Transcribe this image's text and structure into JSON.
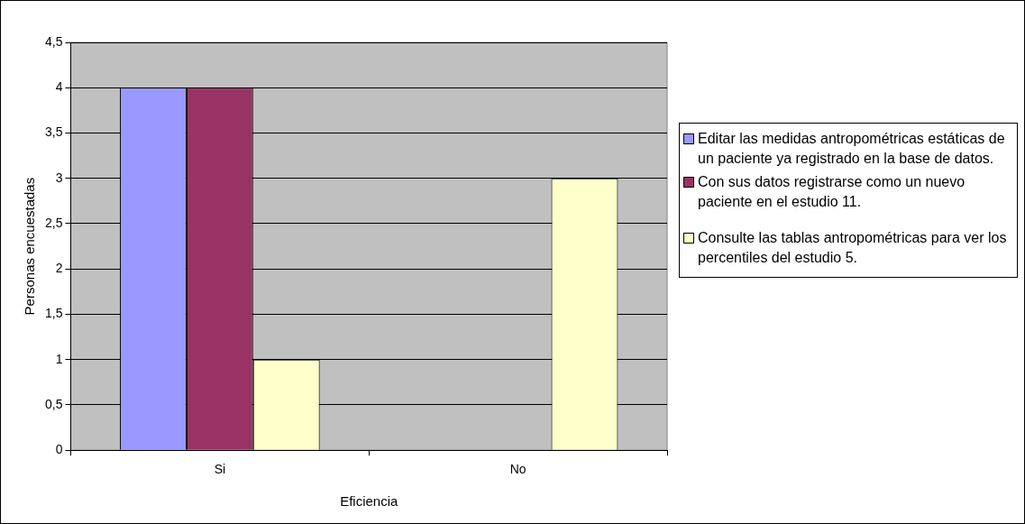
{
  "chart_data": {
    "type": "bar",
    "xlabel": "Eficiencia",
    "ylabel": "Personas encuestadas",
    "categories": [
      "Si",
      "No"
    ],
    "series": [
      {
        "name": "Editar las medidas antropométricas estáticas de un paciente ya registrado en la base de datos.",
        "color": "#9999ff",
        "values": [
          4,
          0
        ]
      },
      {
        "name": "Con sus datos registrarse como un nuevo paciente en el estudio 11.",
        "color": "#993366",
        "values": [
          4,
          0
        ]
      },
      {
        "name": "Consulte las tablas antropométricas para ver los percentiles del estudio 5.",
        "color": "#ffffcc",
        "values": [
          1,
          3
        ]
      }
    ],
    "ylim": [
      0,
      4.5
    ],
    "yticks": [
      0,
      {
        "value": 0.5,
        "label": "0,5"
      },
      1,
      {
        "value": 1.5,
        "label": "1,5"
      },
      2,
      {
        "value": 2.5,
        "label": "2,5"
      },
      3,
      {
        "value": 3.5,
        "label": "3,5"
      },
      4,
      {
        "value": 4.5,
        "label": "4,5"
      }
    ],
    "grid": "y",
    "legend": "right"
  }
}
